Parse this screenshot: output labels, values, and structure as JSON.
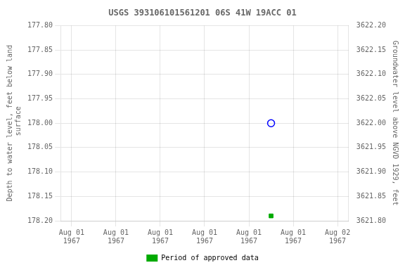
{
  "chart_data": {
    "type": "scatter",
    "title": "USGS 393106101561201 06S 41W 19ACC 01",
    "y_label": "Depth to water level, feet below land\n surface",
    "y2_label": "Groundwater level above NGVD 1929, feet",
    "series": [
      {
        "color": "#0000ff",
        "marker": "open circle",
        "x": [
          18
        ],
        "values": [
          178.0
        ]
      },
      {
        "name": "Period of approved data",
        "color": "#00aa00",
        "marker": "square",
        "x": [
          18
        ],
        "values": [
          178.19
        ]
      }
    ],
    "xlim": [
      -1,
      25
    ],
    "xticks": [
      {
        "value": 0,
        "label": "Aug 01\n1967"
      },
      {
        "value": 4,
        "label": "Aug 01\n1967"
      },
      {
        "value": 8,
        "label": "Aug 01\n1967"
      },
      {
        "value": 12,
        "label": "Aug 01\n1967"
      },
      {
        "value": 16,
        "label": "Aug 01\n1967"
      },
      {
        "value": 20,
        "label": "Aug 01\n1967"
      },
      {
        "value": 24,
        "label": "Aug 02\n1967"
      }
    ],
    "ylim": [
      178.2,
      177.8
    ],
    "yticks": [
      {
        "value": 177.8,
        "label": "177.80"
      },
      177.85,
      {
        "value": 177.9,
        "label": "177.90"
      },
      177.95,
      {
        "value": 178.0,
        "label": "178.00"
      },
      178.05,
      {
        "value": 178.1,
        "label": "178.10"
      },
      178.15,
      {
        "value": 178.2,
        "label": "178.20"
      }
    ],
    "y2lim": [
      3621.8,
      3622.2
    ],
    "y2ticks": [
      {
        "value": 3621.8,
        "label": "3621.80"
      },
      3621.85,
      {
        "value": 3621.9,
        "label": "3621.90"
      },
      3621.95,
      {
        "value": 3622.0,
        "label": "3622.00"
      },
      3622.05,
      {
        "value": 3622.1,
        "label": "3622.10"
      },
      3622.15,
      {
        "value": 3622.2,
        "label": "3622.20"
      }
    ],
    "grid": true,
    "legend": "bottom"
  }
}
